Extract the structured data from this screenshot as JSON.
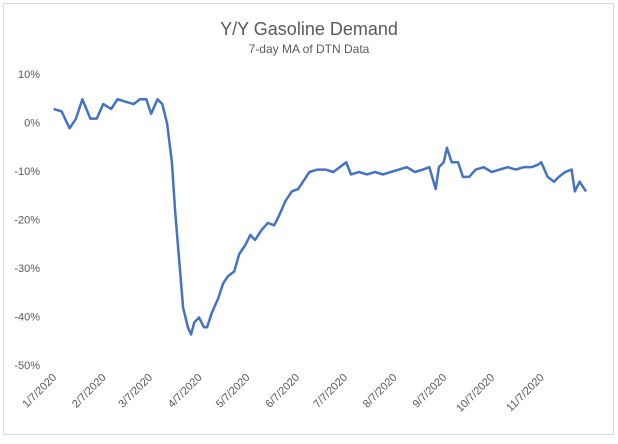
{
  "chart_data": {
    "type": "line",
    "title": "Y/Y Gasoline Demand",
    "subtitle": "7-day MA of DTN Data",
    "color": "#4472c4",
    "grid": false,
    "x": [
      "2020-01-08",
      "2020-01-13",
      "2020-01-18",
      "2020-01-22",
      "2020-01-26",
      "2020-01-31",
      "2020-02-04",
      "2020-02-08",
      "2020-02-13",
      "2020-02-17",
      "2020-02-22",
      "2020-02-27",
      "2020-03-02",
      "2020-03-06",
      "2020-03-09",
      "2020-03-13",
      "2020-03-16",
      "2020-03-19",
      "2020-03-22",
      "2020-03-24",
      "2020-03-27",
      "2020-03-29",
      "2020-04-01",
      "2020-04-03",
      "2020-04-05",
      "2020-04-08",
      "2020-04-11",
      "2020-04-13",
      "2020-04-16",
      "2020-04-20",
      "2020-04-23",
      "2020-04-26",
      "2020-04-30",
      "2020-05-03",
      "2020-05-07",
      "2020-05-10",
      "2020-05-13",
      "2020-05-17",
      "2020-05-21",
      "2020-05-25",
      "2020-05-28",
      "2020-06-01",
      "2020-06-05",
      "2020-06-09",
      "2020-06-12",
      "2020-06-16",
      "2020-06-21",
      "2020-06-26",
      "2020-07-01",
      "2020-07-05",
      "2020-07-09",
      "2020-07-12",
      "2020-07-17",
      "2020-07-22",
      "2020-07-27",
      "2020-08-01",
      "2020-08-06",
      "2020-08-11",
      "2020-08-16",
      "2020-08-21",
      "2020-08-26",
      "2020-08-30",
      "2020-09-03",
      "2020-09-05",
      "2020-09-08",
      "2020-09-10",
      "2020-09-13",
      "2020-09-17",
      "2020-09-20",
      "2020-09-24",
      "2020-09-28",
      "2020-10-03",
      "2020-10-08",
      "2020-10-13",
      "2020-10-18",
      "2020-10-23",
      "2020-10-28",
      "2020-11-02",
      "2020-11-06",
      "2020-11-08",
      "2020-11-12",
      "2020-11-16",
      "2020-11-19",
      "2020-11-23",
      "2020-11-27",
      "2020-11-29",
      "2020-12-02",
      "2020-12-06"
    ],
    "values": [
      3,
      2.5,
      -1,
      1,
      5,
      1,
      1,
      4,
      3,
      5,
      4.5,
      4,
      5,
      5,
      2,
      5,
      4,
      0,
      -8,
      -18,
      -30,
      -38,
      -42,
      -43.5,
      -41,
      -40,
      -42,
      -42,
      -39,
      -36,
      -33,
      -31.5,
      -30.5,
      -27,
      -25,
      -23,
      -24,
      -22,
      -20.5,
      -21,
      -19,
      -16,
      -14,
      -13.5,
      -12,
      -10,
      -9.5,
      -9.5,
      -10,
      -9,
      -8,
      -10.5,
      -10,
      -10.5,
      -10,
      -10.5,
      -10,
      -9.5,
      -9,
      -10,
      -9.5,
      -9,
      -13.5,
      -9,
      -8,
      -5,
      -8,
      -8,
      -11,
      -11,
      -9.5,
      -9,
      -10,
      -9.5,
      -9,
      -9.5,
      -9,
      -9,
      -8.5,
      -8,
      -11,
      -12,
      -11,
      -10,
      -9.5,
      -14,
      -12,
      -14
    ],
    "xlim": [
      "2020-01-07",
      "2020-12-06"
    ],
    "xticks": [
      {
        "value": "2020-01-07",
        "label": "1/7/2020"
      },
      {
        "value": "2020-02-07",
        "label": "2/7/2020"
      },
      {
        "value": "2020-03-07",
        "label": "3/7/2020"
      },
      {
        "value": "2020-04-07",
        "label": "4/7/2020"
      },
      {
        "value": "2020-05-07",
        "label": "5/7/2020"
      },
      {
        "value": "2020-06-07",
        "label": "6/7/2020"
      },
      {
        "value": "2020-07-07",
        "label": "7/7/2020"
      },
      {
        "value": "2020-08-07",
        "label": "8/7/2020"
      },
      {
        "value": "2020-09-07",
        "label": "9/7/2020"
      },
      {
        "value": "2020-10-07",
        "label": "10/7/2020"
      },
      {
        "value": "2020-11-07",
        "label": "11/7/2020"
      }
    ],
    "ylim": [
      -50,
      10
    ],
    "yticks": [
      {
        "value": 10,
        "label": "10%"
      },
      {
        "value": 0,
        "label": "0%"
      },
      {
        "value": -10,
        "label": "-10%"
      },
      {
        "value": -20,
        "label": "-20%"
      },
      {
        "value": -30,
        "label": "-30%"
      },
      {
        "value": -40,
        "label": "-40%"
      },
      {
        "value": -50,
        "label": "-50%"
      }
    ]
  }
}
